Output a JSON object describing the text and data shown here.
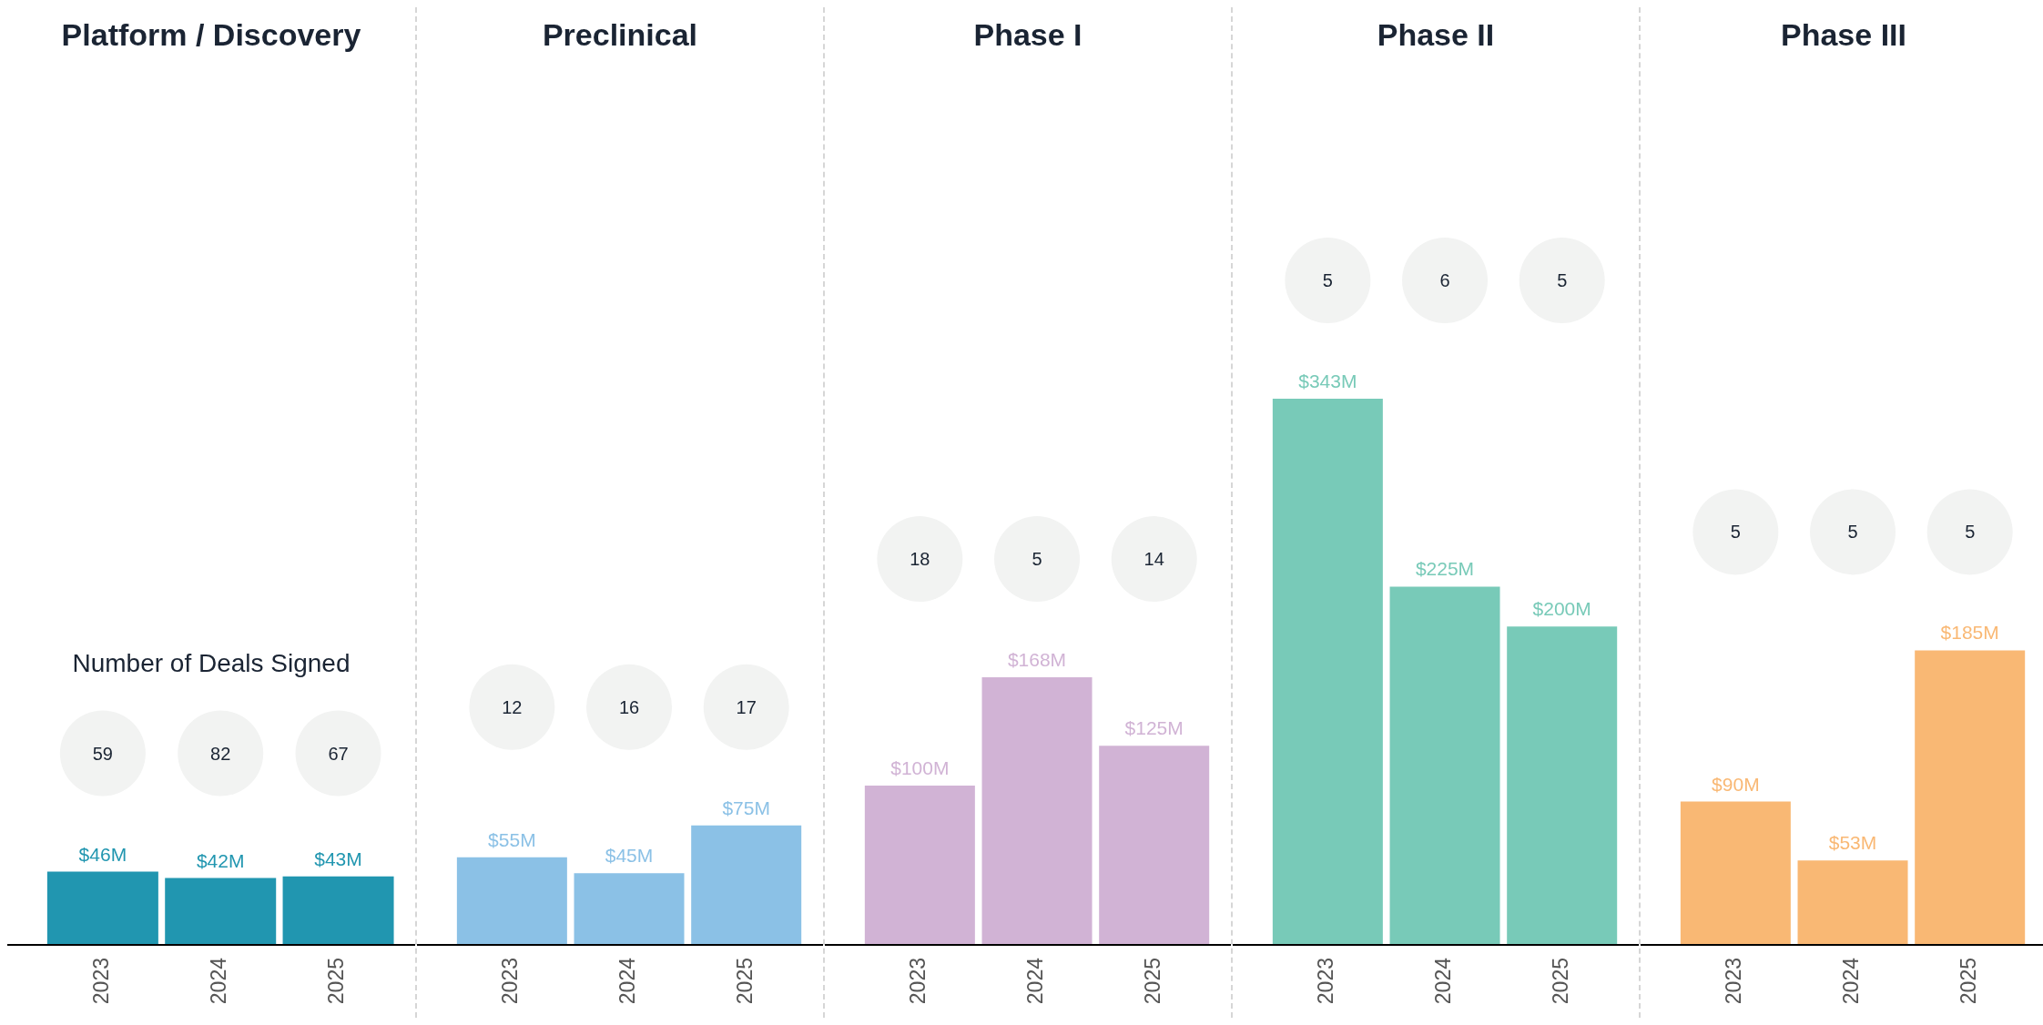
{
  "chart_data": [
    {
      "type": "bar",
      "title": "Platform / Discovery",
      "categories": [
        "2023",
        "2024",
        "2025"
      ],
      "values": [
        46,
        42,
        43
      ],
      "color": "#2196b0",
      "value_labels": [
        "$46M",
        "$42M",
        "$43M"
      ],
      "tick_labels": "x",
      "annotations": [
        "Number of Deals Signed",
        "59",
        "82",
        "67"
      ]
    },
    {
      "type": "bar",
      "title": "Preclinical",
      "categories": [
        "2023",
        "2024",
        "2025"
      ],
      "values": [
        55,
        45,
        75
      ],
      "color": "#8bc1e6",
      "value_labels": [
        "$55M",
        "$45M",
        "$75M"
      ],
      "tick_labels": "x",
      "annotations": [
        "12",
        "16",
        "17"
      ]
    },
    {
      "type": "bar",
      "title": "Phase I",
      "categories": [
        "2023",
        "2024",
        "2025"
      ],
      "values": [
        100,
        168,
        125
      ],
      "color": "#d1b3d5",
      "value_labels": [
        "$100M",
        "$168M",
        "$125M"
      ],
      "tick_labels": "x",
      "annotations": [
        "18",
        "5",
        "14"
      ]
    },
    {
      "type": "bar",
      "title": "Phase II",
      "categories": [
        "2023",
        "2024",
        "2025"
      ],
      "values": [
        343,
        225,
        200
      ],
      "color": "#78cab8",
      "value_labels": [
        "$343M",
        "$225M",
        "$200M"
      ],
      "tick_labels": "x",
      "annotations": [
        "5",
        "6",
        "5"
      ]
    },
    {
      "type": "bar",
      "title": "Phase III",
      "categories": [
        "2023",
        "2024",
        "2025"
      ],
      "values": [
        90,
        53,
        185
      ],
      "color": "#f9b874",
      "value_labels": [
        "$90M",
        "$53M",
        "$185M"
      ],
      "tick_labels": "x",
      "annotations": [
        "5",
        "5",
        "5"
      ]
    }
  ]
}
